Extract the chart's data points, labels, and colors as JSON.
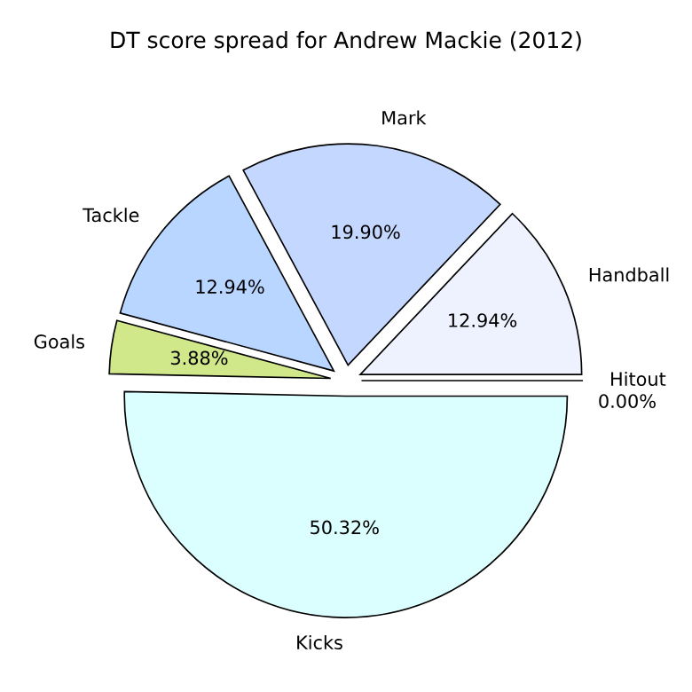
{
  "chart_data": {
    "type": "pie",
    "title": "DT score spread for Andrew Mackie (2012)",
    "categories": [
      "Handball",
      "Mark",
      "Tackle",
      "Goals",
      "Kicks",
      "Hitout"
    ],
    "values": [
      12.94,
      19.9,
      12.94,
      3.88,
      50.32,
      0.0
    ],
    "value_labels": [
      "12.94%",
      "19.90%",
      "12.94%",
      "3.88%",
      "50.32%",
      "0.00%"
    ],
    "colors": [
      "#eef2ff",
      "#c4d8ff",
      "#b8d6ff",
      "#d0e88a",
      "#dbffff",
      "#ffe4c4"
    ]
  }
}
